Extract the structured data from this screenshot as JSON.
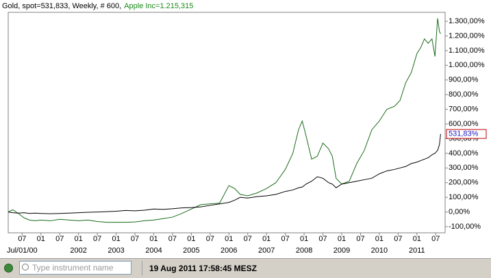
{
  "chart_data": {
    "type": "line",
    "x": [
      2000.13,
      2000.25,
      2000.4,
      2000.55,
      2000.7,
      2000.85,
      2001.0,
      2001.25,
      2001.5,
      2001.75,
      2002.0,
      2002.25,
      2002.5,
      2002.75,
      2003.0,
      2003.25,
      2003.5,
      2003.75,
      2004.0,
      2004.25,
      2004.5,
      2004.75,
      2005.0,
      2005.25,
      2005.5,
      2005.75,
      2006.0,
      2006.15,
      2006.3,
      2006.5,
      2006.75,
      2007.0,
      2007.25,
      2007.5,
      2007.7,
      2007.85,
      2007.95,
      2008.05,
      2008.2,
      2008.35,
      2008.5,
      2008.65,
      2008.75,
      2008.85,
      2009.0,
      2009.2,
      2009.4,
      2009.6,
      2009.8,
      2010.0,
      2010.2,
      2010.4,
      2010.55,
      2010.7,
      2010.85,
      2011.0,
      2011.1,
      2011.2,
      2011.3,
      2011.4,
      2011.48,
      2011.55,
      2011.6,
      2011.63
    ],
    "series": [
      {
        "name": "Gold, spot=531,833, Weekly, # 600,",
        "color": "#000000",
        "values": [
          0,
          -5,
          -8,
          -5,
          -10,
          -8,
          -10,
          -12,
          -10,
          -8,
          -5,
          -2,
          0,
          2,
          5,
          10,
          8,
          12,
          20,
          18,
          22,
          28,
          30,
          35,
          45,
          55,
          65,
          80,
          100,
          95,
          105,
          110,
          120,
          140,
          150,
          165,
          170,
          190,
          210,
          240,
          230,
          200,
          190,
          165,
          190,
          200,
          210,
          220,
          230,
          260,
          280,
          290,
          300,
          310,
          330,
          340,
          350,
          360,
          370,
          390,
          400,
          420,
          460,
          531.83
        ],
        "current_label": "531,83%"
      },
      {
        "name": "Apple Inc=1.215,315",
        "color": "#1a6b1a",
        "values": [
          0,
          15,
          -10,
          -40,
          -55,
          -60,
          -55,
          -60,
          -50,
          -55,
          -60,
          -55,
          -65,
          -70,
          -70,
          -70,
          -68,
          -60,
          -55,
          -45,
          -35,
          -10,
          20,
          50,
          55,
          60,
          180,
          160,
          120,
          110,
          130,
          160,
          200,
          290,
          400,
          560,
          620,
          520,
          360,
          380,
          470,
          430,
          380,
          230,
          190,
          210,
          330,
          420,
          560,
          620,
          700,
          720,
          760,
          880,
          950,
          1080,
          1120,
          1180,
          1150,
          1180,
          1060,
          1320,
          1230,
          1215.315
        ]
      }
    ],
    "xlim": [
      2000.13,
      2011.75
    ],
    "xticks": [
      {
        "value": 2000.5,
        "label": "07"
      },
      {
        "value": 2001,
        "label": "01"
      },
      {
        "value": 2001.5,
        "label": "07"
      },
      {
        "value": 2002,
        "label": "01"
      },
      {
        "value": 2002.5,
        "label": "07"
      },
      {
        "value": 2003,
        "label": "01"
      },
      {
        "value": 2003.5,
        "label": "07"
      },
      {
        "value": 2004,
        "label": "01"
      },
      {
        "value": 2004.5,
        "label": "07"
      },
      {
        "value": 2005,
        "label": "01"
      },
      {
        "value": 2005.5,
        "label": "07"
      },
      {
        "value": 2006,
        "label": "01"
      },
      {
        "value": 2006.5,
        "label": "07"
      },
      {
        "value": 2007,
        "label": "01"
      },
      {
        "value": 2007.5,
        "label": "07"
      },
      {
        "value": 2008,
        "label": "01"
      },
      {
        "value": 2008.5,
        "label": "07"
      },
      {
        "value": 2009,
        "label": "01"
      },
      {
        "value": 2009.5,
        "label": "07"
      },
      {
        "value": 2010,
        "label": "01"
      },
      {
        "value": 2010.5,
        "label": "07"
      },
      {
        "value": 2011,
        "label": "01"
      },
      {
        "value": 2011.5,
        "label": "07"
      }
    ],
    "x_year_ticks": [
      {
        "value": 2000.5,
        "label": "Jul/01/00"
      },
      {
        "value": 2002,
        "label": "2002"
      },
      {
        "value": 2003,
        "label": "2003"
      },
      {
        "value": 2004,
        "label": "2004"
      },
      {
        "value": 2005,
        "label": "2005"
      },
      {
        "value": 2006,
        "label": "2006"
      },
      {
        "value": 2007,
        "label": "2007"
      },
      {
        "value": 2008,
        "label": "2008"
      },
      {
        "value": 2009,
        "label": "2009"
      },
      {
        "value": 2010,
        "label": "2010"
      },
      {
        "value": 2011,
        "label": "2011"
      }
    ],
    "ylim": [
      -142,
      1361
    ],
    "yticks": [
      {
        "value": 1300,
        "label": "1.300,00%"
      },
      {
        "value": 1200,
        "label": "1.200,00%"
      },
      {
        "value": 1100,
        "label": "1.100,00%"
      },
      {
        "value": 1000,
        "label": "1.000,00%"
      },
      {
        "value": 900,
        "label": "900,00%"
      },
      {
        "value": 800,
        "label": "800,00%"
      },
      {
        "value": 700,
        "label": "700,00%"
      },
      {
        "value": 600,
        "label": "600,00%"
      },
      {
        "value": 500,
        "label": "500,00%"
      },
      {
        "value": 400,
        "label": "400,00%"
      },
      {
        "value": 300,
        "label": "300,00%"
      },
      {
        "value": 200,
        "label": "200,00%"
      },
      {
        "value": 100,
        "label": "100,00%"
      },
      {
        "value": 0,
        "label": "0,00%"
      },
      {
        "value": -100,
        "label": "-100,00%"
      }
    ],
    "grid": false
  },
  "toolbar": {
    "search_placeholder": "Type instrument name",
    "timestamp": "19 Aug 2011 17:58:45 MESZ"
  }
}
